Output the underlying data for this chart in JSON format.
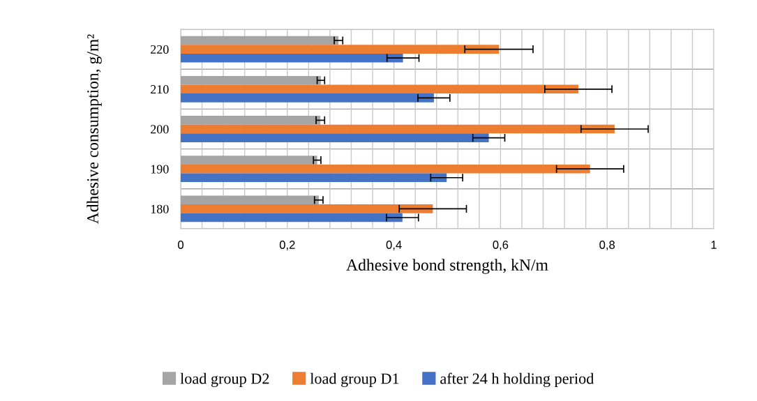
{
  "chart_data": {
    "type": "bar",
    "orientation": "horizontal",
    "xlabel": "Adhesive bond strength, kN/m",
    "ylabel": "Adhesive consumption, g/m²",
    "categories": [
      "220",
      "210",
      "200",
      "190",
      "180"
    ],
    "series": [
      {
        "name": "load group D2",
        "color": "#a5a5a5",
        "values": [
          0.296,
          0.263,
          0.262,
          0.256,
          0.259
        ],
        "errors": [
          0.008,
          0.007,
          0.008,
          0.007,
          0.008
        ]
      },
      {
        "name": "load group D1",
        "color": "#ed7d31",
        "values": [
          0.597,
          0.746,
          0.814,
          0.768,
          0.473
        ],
        "errors": [
          0.064,
          0.063,
          0.063,
          0.063,
          0.063
        ]
      },
      {
        "name": "after 24 h holding period",
        "color": "#4472c4",
        "values": [
          0.417,
          0.475,
          0.578,
          0.499,
          0.416
        ],
        "errors": [
          0.03,
          0.03,
          0.03,
          0.03,
          0.03
        ]
      }
    ],
    "xlim": [
      0,
      1
    ],
    "xticks": [
      0,
      {
        "value": 0.04,
        "label": null
      },
      {
        "value": 0.08,
        "label": null
      },
      {
        "value": 0.12,
        "label": null
      },
      {
        "value": 0.16,
        "label": null
      },
      {
        "value": 0.2,
        "label": "0,2"
      },
      {
        "value": 0.24,
        "label": null
      },
      {
        "value": 0.28,
        "label": null
      },
      {
        "value": 0.32,
        "label": null
      },
      {
        "value": 0.36,
        "label": null
      },
      {
        "value": 0.4,
        "label": "0,4"
      },
      {
        "value": 0.44,
        "label": null
      },
      {
        "value": 0.48,
        "label": null
      },
      {
        "value": 0.52,
        "label": null
      },
      {
        "value": 0.56,
        "label": null
      },
      {
        "value": 0.6,
        "label": "0,6"
      },
      {
        "value": 0.64,
        "label": null
      },
      {
        "value": 0.68,
        "label": null
      },
      {
        "value": 0.72,
        "label": null
      },
      {
        "value": 0.76,
        "label": null
      },
      {
        "value": 0.8,
        "label": "0,8"
      },
      {
        "value": 0.84,
        "label": null
      },
      {
        "value": 0.88,
        "label": null
      },
      {
        "value": 0.92,
        "label": null
      },
      {
        "value": 0.96,
        "label": null
      },
      1
    ],
    "grid": true,
    "legend": "bottom"
  }
}
